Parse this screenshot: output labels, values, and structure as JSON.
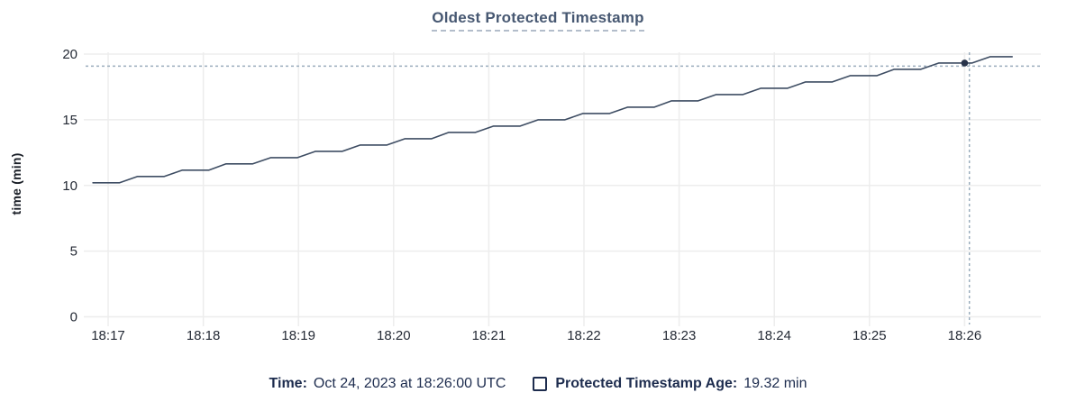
{
  "title": "Oldest Protected Timestamp",
  "y_axis_label": "time (min)",
  "legend": {
    "time_label": "Time:",
    "time_value": "Oct 24, 2023 at 18:26:00 UTC",
    "series_checkbox_icon": "checkbox-unchecked-icon",
    "series_label": "Protected Timestamp Age:",
    "series_value": "19.32 min"
  },
  "colors": {
    "title": "#475872",
    "legend_text": "#1d2c4e",
    "axis_text": "#242a35",
    "background": "#ffffff"
  },
  "chart_data": {
    "type": "line",
    "title": "Oldest Protected Timestamp",
    "xlabel": "",
    "ylabel": "time (min)",
    "ylim": [
      0,
      20
    ],
    "yticks": [
      0,
      5,
      10,
      15,
      20
    ],
    "x_tick_labels": [
      "18:17",
      "18:18",
      "18:19",
      "18:20",
      "18:21",
      "18:22",
      "18:23",
      "18:24",
      "18:25",
      "18:26"
    ],
    "grid": true,
    "legend_position": "bottom",
    "series": [
      {
        "name": "Protected Timestamp Age",
        "unit": "min",
        "points": [
          [
            -0.16,
            10.2
          ],
          [
            0.12,
            10.2
          ],
          [
            0.31,
            10.68
          ],
          [
            0.59,
            10.68
          ],
          [
            0.78,
            11.16
          ],
          [
            1.06,
            11.16
          ],
          [
            1.24,
            11.64
          ],
          [
            1.52,
            11.64
          ],
          [
            1.71,
            12.12
          ],
          [
            1.99,
            12.12
          ],
          [
            2.18,
            12.6
          ],
          [
            2.46,
            12.6
          ],
          [
            2.65,
            13.08
          ],
          [
            2.93,
            13.08
          ],
          [
            3.12,
            13.56
          ],
          [
            3.4,
            13.56
          ],
          [
            3.58,
            14.04
          ],
          [
            3.86,
            14.04
          ],
          [
            4.05,
            14.52
          ],
          [
            4.33,
            14.52
          ],
          [
            4.52,
            15.0
          ],
          [
            4.8,
            15.0
          ],
          [
            4.99,
            15.48
          ],
          [
            5.27,
            15.48
          ],
          [
            5.46,
            15.96
          ],
          [
            5.74,
            15.96
          ],
          [
            5.92,
            16.44
          ],
          [
            6.2,
            16.44
          ],
          [
            6.39,
            16.92
          ],
          [
            6.67,
            16.92
          ],
          [
            6.86,
            17.4
          ],
          [
            7.14,
            17.4
          ],
          [
            7.33,
            17.88
          ],
          [
            7.61,
            17.88
          ],
          [
            7.8,
            18.36
          ],
          [
            8.08,
            18.36
          ],
          [
            8.26,
            18.84
          ],
          [
            8.54,
            18.84
          ],
          [
            8.73,
            19.32
          ],
          [
            9.08,
            19.32
          ],
          [
            9.27,
            19.8
          ],
          [
            9.5,
            19.8
          ]
        ]
      }
    ],
    "crosshair": {
      "time_label": "18:26:00",
      "t": 9.0,
      "value": 19.32,
      "cursor_t": 9.05,
      "cursor_value": 19.08
    },
    "colors": {
      "line": "#3e4d63",
      "grid": "#ededed",
      "crosshair": "#9badbd",
      "dot": "#27334a"
    }
  }
}
